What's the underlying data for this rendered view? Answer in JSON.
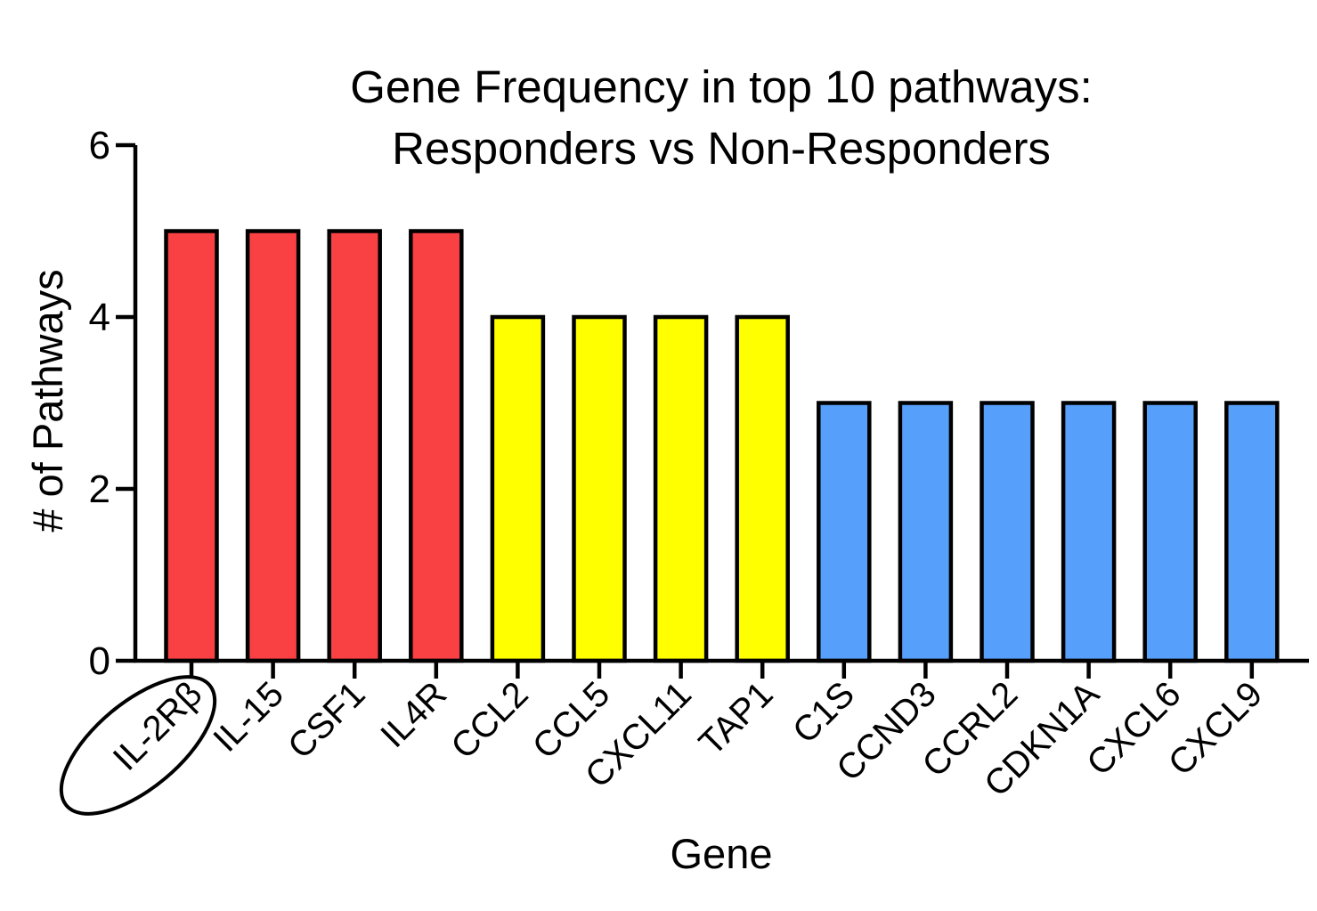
{
  "chart_data": {
    "type": "bar",
    "title_lines": [
      "Gene Frequency in top 10 pathways:",
      "Responders vs Non-Responders"
    ],
    "xlabel": "Gene",
    "ylabel": "# of Pathways",
    "ylim": [
      0,
      6
    ],
    "yticks": [
      "0",
      "2",
      "4",
      "6"
    ],
    "grid": false,
    "categories": [
      "IL-2Rβ",
      "IL-15",
      "CSF1",
      "IL4R",
      "CCL2",
      "CCL5",
      "CXCL11",
      "TAP1",
      "C1S",
      "CCND3",
      "CCRL2",
      "CDKN1A",
      "CXCL6",
      "CXCL9"
    ],
    "values": [
      5,
      5,
      5,
      5,
      4,
      4,
      4,
      4,
      3,
      3,
      3,
      3,
      3,
      3
    ],
    "bar_colors": [
      "#f94144",
      "#f94144",
      "#f94144",
      "#f94144",
      "#ffff00",
      "#ffff00",
      "#ffff00",
      "#ffff00",
      "#569ffa",
      "#569ffa",
      "#569ffa",
      "#569ffa",
      "#569ffa",
      "#569ffa"
    ],
    "annotations": [
      {
        "type": "ellipse",
        "target": "IL-2Rβ"
      }
    ]
  }
}
